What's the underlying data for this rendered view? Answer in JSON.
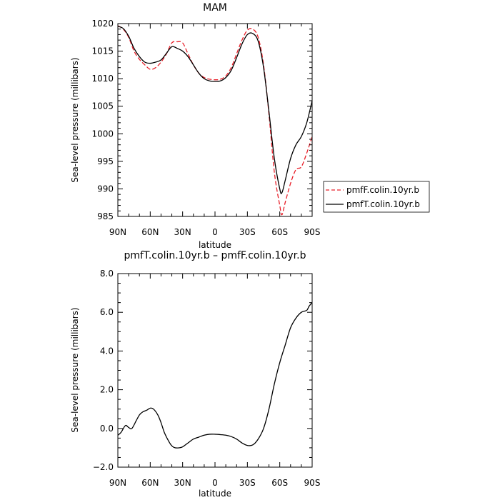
{
  "chart_data": [
    {
      "type": "line",
      "title": "MAM",
      "xlabel": "latitude",
      "ylabel": "Sea-level pressure (millibars)",
      "xlim": [
        90,
        -90
      ],
      "ylim": [
        985,
        1020
      ],
      "x_ticks": [
        {
          "value": 90,
          "label": "90N"
        },
        {
          "value": 60,
          "label": "60N"
        },
        {
          "value": 30,
          "label": "30N"
        },
        {
          "value": 0,
          "label": "0"
        },
        {
          "value": -30,
          "label": "30S"
        },
        {
          "value": -60,
          "label": "60S"
        },
        {
          "value": -90,
          "label": "90S"
        }
      ],
      "y_ticks": [
        {
          "value": 985,
          "label": "985"
        },
        {
          "value": 990,
          "label": "990"
        },
        {
          "value": 995,
          "label": "995"
        },
        {
          "value": 1000,
          "label": "1000"
        },
        {
          "value": 1005,
          "label": "1005"
        },
        {
          "value": 1010,
          "label": "1010"
        },
        {
          "value": 1015,
          "label": "1015"
        },
        {
          "value": 1020,
          "label": "1020"
        }
      ],
      "legend_position": "outside-right",
      "x": [
        90,
        85,
        80,
        75,
        70,
        65,
        60,
        55,
        50,
        45,
        40,
        35,
        30,
        25,
        20,
        15,
        10,
        5,
        0,
        -5,
        -10,
        -15,
        -20,
        -25,
        -30,
        -35,
        -40,
        -45,
        -50,
        -55,
        -60,
        -62,
        -65,
        -70,
        -75,
        -80,
        -85,
        -90
      ],
      "series": [
        {
          "name": "pmfF.colin.10yr.b",
          "color": "#e8202a",
          "dash": "dashed",
          "values": [
            1019.6,
            1019.0,
            1017.5,
            1015.0,
            1013.5,
            1012.5,
            1011.7,
            1012.0,
            1013.0,
            1014.5,
            1016.5,
            1016.7,
            1016.5,
            1014.5,
            1012.5,
            1011.0,
            1010.2,
            1009.9,
            1009.8,
            1009.9,
            1010.5,
            1012.0,
            1014.5,
            1017.0,
            1018.8,
            1019.0,
            1017.5,
            1012.5,
            1003.5,
            993.0,
            987.0,
            985.3,
            987.5,
            991.0,
            993.5,
            994.0,
            996.5,
            999.5
          ]
        },
        {
          "name": "pmfT.colin.10yr.b",
          "color": "#000000",
          "dash": "solid",
          "values": [
            1019.5,
            1019.1,
            1017.7,
            1015.5,
            1014.0,
            1013.0,
            1012.8,
            1013.0,
            1013.4,
            1014.6,
            1015.8,
            1015.5,
            1015.0,
            1014.0,
            1012.5,
            1011.0,
            1010.0,
            1009.6,
            1009.5,
            1009.6,
            1010.2,
            1011.5,
            1013.8,
            1016.3,
            1018.0,
            1018.2,
            1016.8,
            1012.0,
            1004.0,
            995.5,
            990.0,
            989.3,
            991.5,
            995.5,
            998.0,
            999.5,
            1002.0,
            1006.0
          ]
        }
      ]
    },
    {
      "type": "line",
      "title": "pmfT.colin.10yr.b – pmfF.colin.10yr.b",
      "xlabel": "latitude",
      "ylabel": "Sea-level pressure (millibars)",
      "xlim": [
        90,
        -90
      ],
      "ylim": [
        -2.0,
        8.0
      ],
      "x_ticks": [
        {
          "value": 90,
          "label": "90N"
        },
        {
          "value": 60,
          "label": "60N"
        },
        {
          "value": 30,
          "label": "30N"
        },
        {
          "value": 0,
          "label": "0"
        },
        {
          "value": -30,
          "label": "30S"
        },
        {
          "value": -60,
          "label": "60S"
        },
        {
          "value": -90,
          "label": "90S"
        }
      ],
      "y_ticks": [
        {
          "value": -2.0,
          "label": "−2.0"
        },
        {
          "value": 0.0,
          "label": "0.0"
        },
        {
          "value": 2.0,
          "label": "2.0"
        },
        {
          "value": 4.0,
          "label": "4.0"
        },
        {
          "value": 6.0,
          "label": "6.0"
        },
        {
          "value": 8.0,
          "label": "8.0"
        }
      ],
      "x": [
        90,
        87,
        83,
        80,
        77,
        73,
        70,
        67,
        63,
        60,
        57,
        53,
        50,
        47,
        43,
        40,
        37,
        33,
        30,
        25,
        20,
        15,
        10,
        5,
        0,
        -5,
        -10,
        -15,
        -20,
        -25,
        -30,
        -35,
        -40,
        -45,
        -50,
        -55,
        -60,
        -65,
        -70,
        -75,
        -80,
        -85,
        -87,
        -90
      ],
      "series": [
        {
          "color": "#000000",
          "dash": "solid",
          "values": [
            -0.35,
            -0.2,
            0.15,
            0.05,
            0.0,
            0.4,
            0.7,
            0.85,
            0.95,
            1.05,
            1.0,
            0.7,
            0.3,
            -0.2,
            -0.65,
            -0.9,
            -1.0,
            -1.0,
            -0.95,
            -0.75,
            -0.55,
            -0.45,
            -0.35,
            -0.3,
            -0.3,
            -0.32,
            -0.35,
            -0.42,
            -0.55,
            -0.75,
            -0.88,
            -0.85,
            -0.55,
            0.0,
            1.0,
            2.3,
            3.4,
            4.3,
            5.2,
            5.7,
            6.0,
            6.1,
            6.3,
            6.5
          ]
        }
      ]
    }
  ]
}
